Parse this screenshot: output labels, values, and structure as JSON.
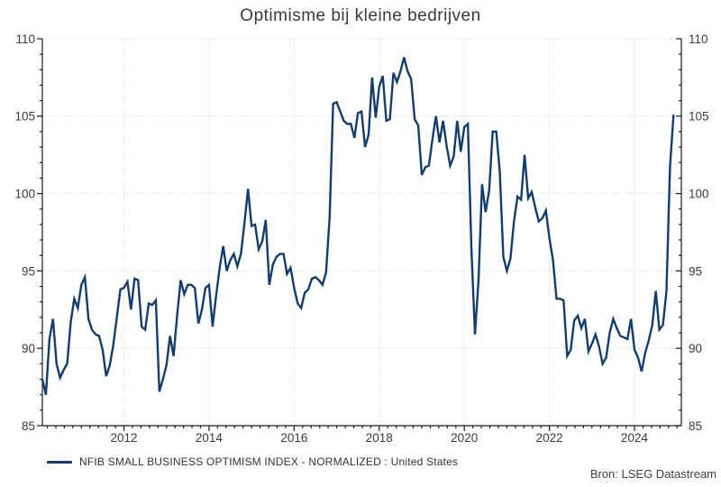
{
  "title": "Optimisme bij kleine bedrijven",
  "legend": {
    "label": "NFIB SMALL BUSINESS OPTIMISM INDEX - NORMALIZED : United States"
  },
  "source": "Bron: LSEG Datastream",
  "colors": {
    "line": "#143d6b",
    "grid": "#cccccc",
    "axis": "#1a1a1a",
    "tick_text": "#3a3a3a"
  },
  "chart_data": {
    "type": "line",
    "title": "Optimisme bij kleine bedrijven",
    "xlabel": "",
    "ylabel": "",
    "ylim": [
      85,
      110
    ],
    "x_range": [
      2010.0833,
      2025.1
    ],
    "y_ticks": [
      85,
      90,
      95,
      100,
      105,
      110
    ],
    "y_minor_tick_step": 1,
    "x_ticks": [
      "2012",
      "2014",
      "2016",
      "2018",
      "2020",
      "2022",
      "2024"
    ],
    "x_minor_tick_step_years": 0.2,
    "grid": "dotted, horizontal at major y ticks, vertical at labeled years",
    "legend_position": "bottom-left",
    "series": [
      {
        "name": "NFIB SMALL BUSINESS OPTIMISM INDEX - NORMALIZED : United States",
        "frequency": "monthly",
        "start": {
          "year": 2010,
          "month": 2
        },
        "end": {
          "year": 2024,
          "month": 12
        },
        "values": [
          88.0,
          87.0,
          90.6,
          91.9,
          89.0,
          88.1,
          88.6,
          89.0,
          91.7,
          93.2,
          92.6,
          94.1,
          94.6,
          91.9,
          91.2,
          90.9,
          90.8,
          89.9,
          88.2,
          88.9,
          90.2,
          92.0,
          93.8,
          93.9,
          94.3,
          92.5,
          94.5,
          94.4,
          91.4,
          91.2,
          92.9,
          92.8,
          93.1,
          87.2,
          88.0,
          88.9,
          90.8,
          89.5,
          92.1,
          94.4,
          93.5,
          94.1,
          94.1,
          93.9,
          91.6,
          92.5,
          93.9,
          94.1,
          91.4,
          93.4,
          95.2,
          96.6,
          95.0,
          95.7,
          96.1,
          95.3,
          96.1,
          98.1,
          100.3,
          97.9,
          98.0,
          96.4,
          96.9,
          98.3,
          94.1,
          95.4,
          95.9,
          96.1,
          96.1,
          94.8,
          95.2,
          93.9,
          92.9,
          92.6,
          93.6,
          93.8,
          94.5,
          94.6,
          94.4,
          94.1,
          94.9,
          98.4,
          105.8,
          105.9,
          105.3,
          104.7,
          104.5,
          104.5,
          103.6,
          105.2,
          105.3,
          103.0,
          103.8,
          107.5,
          104.9,
          106.9,
          107.6,
          104.7,
          104.8,
          107.8,
          107.2,
          107.9,
          108.8,
          107.9,
          107.4,
          104.8,
          104.4,
          101.2,
          101.7,
          101.8,
          103.5,
          105.0,
          103.3,
          104.7,
          103.1,
          101.8,
          102.4,
          104.7,
          102.7,
          104.3,
          104.5,
          96.4,
          90.9,
          94.4,
          100.6,
          98.8,
          100.2,
          104.0,
          104.0,
          101.4,
          95.9,
          95.0,
          95.8,
          98.2,
          99.8,
          99.6,
          102.5,
          99.7,
          100.1,
          99.1,
          98.2,
          98.4,
          98.9,
          97.1,
          95.7,
          93.2,
          93.2,
          93.1,
          89.5,
          89.9,
          91.8,
          92.1,
          91.3,
          91.9,
          89.8,
          90.3,
          90.9,
          90.1,
          89.0,
          89.4,
          91.0,
          91.9,
          91.3,
          90.8,
          90.7,
          90.6,
          91.9,
          89.9,
          89.4,
          88.5,
          89.7,
          90.5,
          91.5,
          93.7,
          91.2,
          91.5,
          93.7,
          101.7,
          105.1
        ]
      }
    ]
  }
}
